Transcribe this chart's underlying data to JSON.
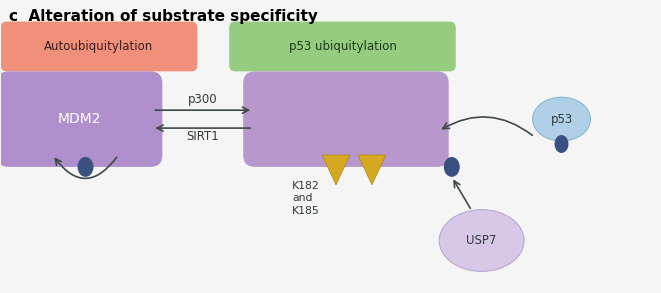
{
  "title": "c  Alteration of substrate specificity",
  "title_fontsize": 11,
  "title_fontweight": "bold",
  "bg_color": "#f5f5f5",
  "label_autoubiq": "Autoubiquitylation",
  "label_p53ubiq": "p53 ubiquitylation",
  "label_mdm2": "MDM2",
  "label_p300": "p300",
  "label_sirt1": "SIRT1",
  "label_k182": "K182\nand\nK185",
  "label_p53": "p53",
  "label_usp7": "USP7",
  "box_auto_color": "#f0907a",
  "box_p53ubiq_color": "#96cc80",
  "box_mdm2_color": "#b090cc",
  "box_center_color": "#b898cc",
  "circle_p53_color": "#b0d0e8",
  "circle_usp7_color": "#d8c8e8",
  "dot_color": "#3a5080",
  "triangle_color": "#d4a820",
  "triangle_edge": "#b08810",
  "arrow_color": "#404848",
  "text_color": "#303838",
  "text_dark": "#303838"
}
